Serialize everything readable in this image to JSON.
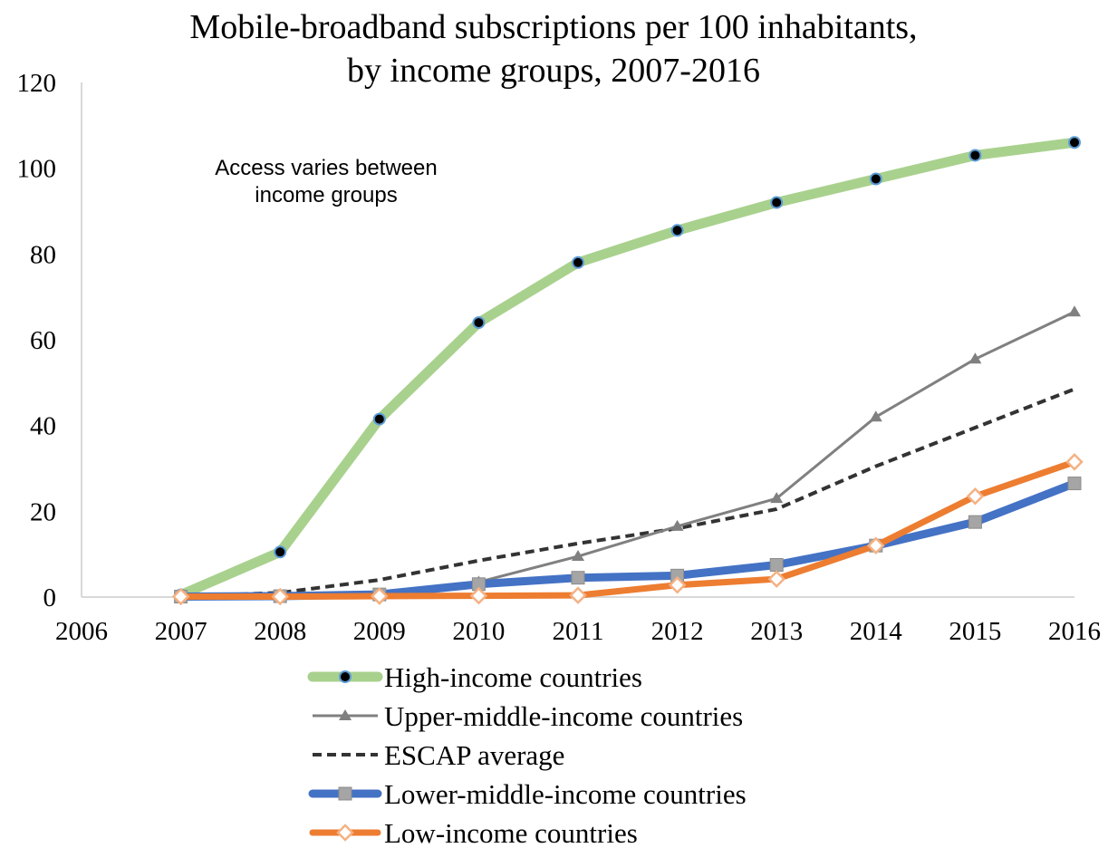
{
  "chart_data": {
    "type": "line",
    "title": "Mobile-broadband subscriptions per 100 inhabitants,",
    "subtitle": "by income groups, 2007-2016",
    "annotation": [
      "Access varies between",
      "income groups"
    ],
    "xlabel": "",
    "ylabel": "",
    "xlim": [
      2006,
      2016
    ],
    "ylim": [
      0,
      120
    ],
    "xticks": [
      "2006",
      "2007",
      "2008",
      "2009",
      "2010",
      "2011",
      "2012",
      "2013",
      "2014",
      "2015",
      "2016"
    ],
    "yticks": [
      "0",
      "20",
      "40",
      "60",
      "80",
      "100",
      "120"
    ],
    "grid": false,
    "legend_position": "bottom",
    "x": [
      2007,
      2008,
      2009,
      2010,
      2011,
      2012,
      2013,
      2014,
      2015,
      2016
    ],
    "series": [
      {
        "name": "High-income countries",
        "color": "#a9d18e",
        "marker": "circle",
        "values": [
          0.5,
          10.5,
          41.5,
          64,
          78,
          85.5,
          92,
          97.5,
          103,
          106
        ]
      },
      {
        "name": "Upper-middle-income countries",
        "color": "#808080",
        "marker": "triangle",
        "values": [
          0.1,
          0.2,
          0.5,
          3.5,
          9.5,
          16.5,
          23,
          42,
          55.5,
          66.5
        ]
      },
      {
        "name": "ESCAP average",
        "color": "#333333",
        "marker": "none",
        "dashed": true,
        "values": [
          0.1,
          1,
          4,
          8.5,
          12.5,
          16,
          20.5,
          30.5,
          39.5,
          48.5
        ]
      },
      {
        "name": "Lower-middle-income countries",
        "color": "#4472c4",
        "marker": "square",
        "values": [
          0.1,
          0.2,
          0.6,
          3,
          4.5,
          5,
          7.5,
          12,
          17.5,
          26.5
        ]
      },
      {
        "name": "Low-income countries",
        "color": "#ed7d31",
        "marker": "diamond",
        "values": [
          0.1,
          0.1,
          0.2,
          0.3,
          0.4,
          2.8,
          4.2,
          12,
          23.5,
          31.5
        ]
      }
    ]
  }
}
